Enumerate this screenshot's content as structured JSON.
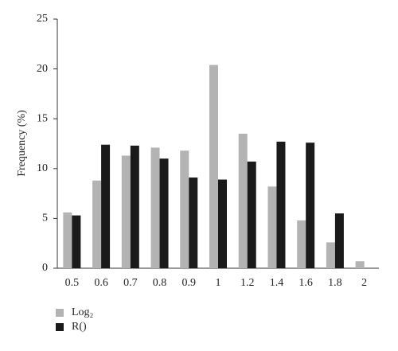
{
  "chart_data": {
    "type": "bar",
    "y_label": "Frequency (%)",
    "categories": [
      "0.5",
      "0.6",
      "0.7",
      "0.8",
      "0.9",
      "1",
      "1.2",
      "1.4",
      "1.6",
      "1.8",
      "2"
    ],
    "series": [
      {
        "name": "Log₂",
        "color": "#b3b3b3",
        "values": [
          5.6,
          8.8,
          11.3,
          12.1,
          11.8,
          20.4,
          13.5,
          8.2,
          4.8,
          2.6,
          0.7
        ]
      },
      {
        "name": "R()",
        "color": "#1a1a1a",
        "values": [
          5.3,
          12.4,
          12.3,
          11.0,
          9.1,
          8.9,
          10.7,
          12.7,
          12.6,
          5.5,
          null
        ]
      }
    ],
    "ylim": [
      0,
      25
    ],
    "yticks": [
      0,
      5,
      10,
      15,
      20,
      25
    ],
    "grid": false
  }
}
